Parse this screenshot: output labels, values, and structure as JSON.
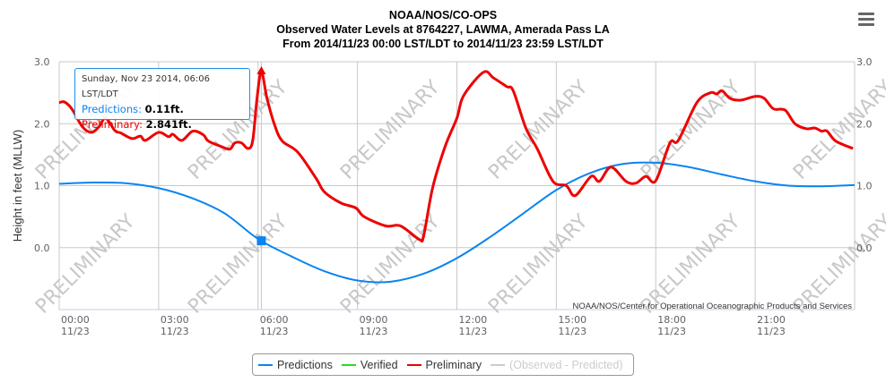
{
  "chart_data": {
    "type": "line",
    "title": "NOAA/NOS/CO-OPS",
    "subtitle1": "Observed Water Levels at 8764227, LAWMA, Amerada Pass LA",
    "subtitle2": "From 2014/11/23 00:00 LST/LDT to 2014/11/23 23:59 LST/LDT",
    "ylabel": "Height in feet (MLLW)",
    "ylim": [
      -1.0,
      3.0
    ],
    "yticks": [
      "3.0",
      "2.0",
      "1.0",
      "0.0"
    ],
    "ytick_values": [
      3,
      2,
      1,
      0
    ],
    "xlim_hours": [
      0,
      24
    ],
    "xticks": [
      {
        "time": "00:00",
        "date": "11/23"
      },
      {
        "time": "03:00",
        "date": "11/23"
      },
      {
        "time": "06:00",
        "date": "11/23"
      },
      {
        "time": "09:00",
        "date": "11/23"
      },
      {
        "time": "12:00",
        "date": "11/23"
      },
      {
        "time": "15:00",
        "date": "11/23"
      },
      {
        "time": "18:00",
        "date": "11/23"
      },
      {
        "time": "21:00",
        "date": "11/23"
      }
    ],
    "credit": "NOAA/NOS/Center for Operational Oceanographic Products and Services",
    "watermark": "PRELIMINARY",
    "series": [
      {
        "name": "Predictions",
        "color": "#0a84f0",
        "x": [
          0,
          1,
          2,
          3,
          4,
          5,
          6,
          7,
          8,
          9,
          10,
          11,
          12,
          13,
          14,
          15,
          16,
          17,
          18,
          19,
          20,
          21,
          22,
          23,
          24
        ],
        "y": [
          1.03,
          1.05,
          1.04,
          0.96,
          0.8,
          0.55,
          0.14,
          -0.14,
          -0.38,
          -0.53,
          -0.55,
          -0.42,
          -0.17,
          0.17,
          0.55,
          0.93,
          1.2,
          1.35,
          1.37,
          1.3,
          1.18,
          1.07,
          1.0,
          0.99,
          1.01
        ]
      },
      {
        "name": "Verified",
        "color": "#22dd22",
        "x": [],
        "y": []
      },
      {
        "name": "Preliminary",
        "color": "#ee0000",
        "x": [
          0,
          0.16,
          0.38,
          0.7,
          0.97,
          1.2,
          1.4,
          1.68,
          1.86,
          2.2,
          2.45,
          2.6,
          3.0,
          3.3,
          3.43,
          3.7,
          4.03,
          4.35,
          4.5,
          4.9,
          5.15,
          5.3,
          5.5,
          5.7,
          5.84,
          5.97,
          6.1,
          6.27,
          6.5,
          6.73,
          7.2,
          7.76,
          8.0,
          8.5,
          8.95,
          9.2,
          9.85,
          10.3,
          10.87,
          11.0,
          11.27,
          11.65,
          12.0,
          12.2,
          12.8,
          13.1,
          13.5,
          13.7,
          14.08,
          14.43,
          14.9,
          15.3,
          15.57,
          16.05,
          16.3,
          16.65,
          17.1,
          17.4,
          17.7,
          18.0,
          18.43,
          18.68,
          19.24,
          19.65,
          19.84,
          20.0,
          20.24,
          20.56,
          21.0,
          21.27,
          21.55,
          21.9,
          22.2,
          22.54,
          22.8,
          23.0,
          23.17,
          23.43,
          23.95
        ],
        "y": [
          2.34,
          2.35,
          2.24,
          1.95,
          1.86,
          1.95,
          2.09,
          1.89,
          1.85,
          1.76,
          1.8,
          1.73,
          1.86,
          1.79,
          1.83,
          1.73,
          1.88,
          1.82,
          1.72,
          1.63,
          1.59,
          1.69,
          1.69,
          1.6,
          1.73,
          2.41,
          2.841,
          2.41,
          1.98,
          1.72,
          1.54,
          1.11,
          0.9,
          0.72,
          0.64,
          0.5,
          0.35,
          0.35,
          0.13,
          0.2,
          0.97,
          1.64,
          2.09,
          2.45,
          2.83,
          2.74,
          2.6,
          2.53,
          1.93,
          1.59,
          1.07,
          1.0,
          0.84,
          1.15,
          1.07,
          1.3,
          1.07,
          1.04,
          1.15,
          1.08,
          1.69,
          1.73,
          2.34,
          2.5,
          2.48,
          2.53,
          2.41,
          2.38,
          2.44,
          2.41,
          2.24,
          2.22,
          2.0,
          1.92,
          1.93,
          1.88,
          1.88,
          1.72,
          1.6
        ]
      },
      {
        "name": "(Observed - Predicted)",
        "color": "#cccccc",
        "x": [],
        "y": []
      }
    ],
    "highlight": {
      "hour": 6.1
    }
  },
  "tooltip": {
    "date": "Sunday, Nov 23 2014, 06:06 LST/LDT",
    "pred_label": "Predictions:",
    "pred_value": "0.11ft.",
    "prelim_label": "Preliminary:",
    "prelim_value": "2.841ft."
  }
}
